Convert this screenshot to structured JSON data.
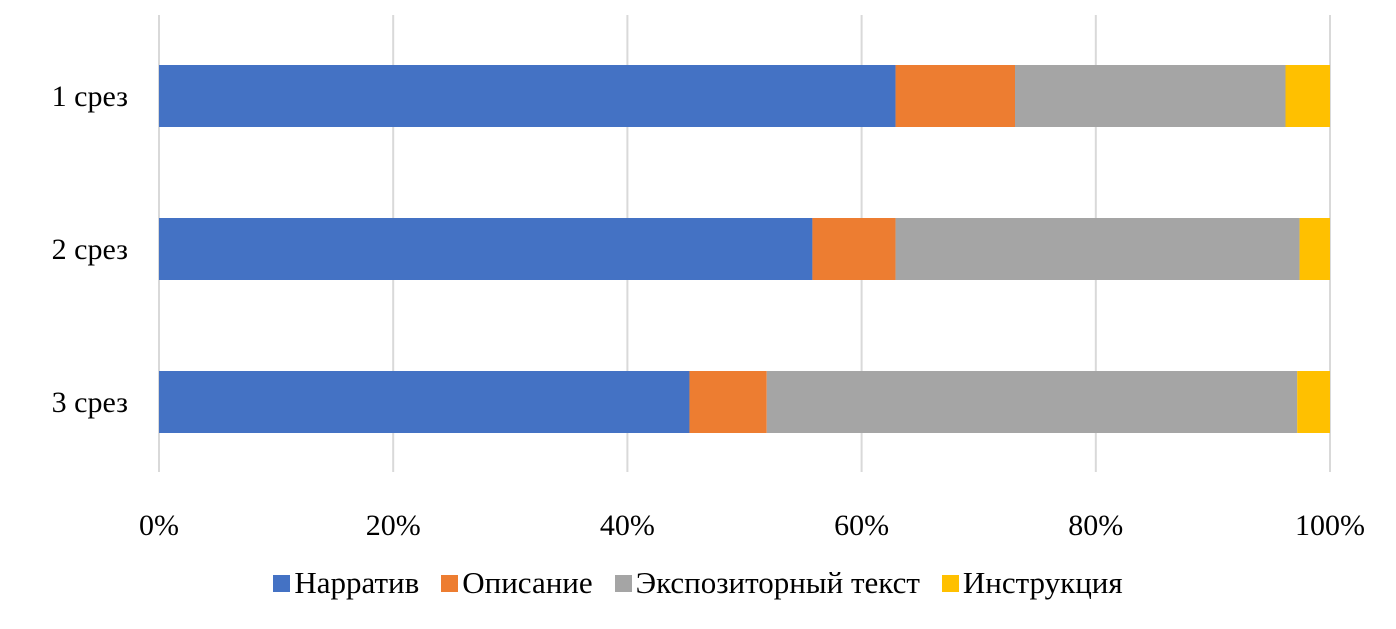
{
  "chart_data": {
    "type": "bar",
    "orientation": "horizontal",
    "stacked": "percent",
    "title": "",
    "xlabel": "",
    "ylabel": "",
    "categories": [
      "1 срез",
      "2 срез",
      "3 срез"
    ],
    "series": [
      {
        "name": "Нарратив",
        "color": "#4472C4",
        "values": [
          62.9,
          55.8,
          45.3
        ]
      },
      {
        "name": "Описание",
        "color": "#ED7D31",
        "values": [
          10.2,
          7.1,
          6.6
        ]
      },
      {
        "name": "Экспозиторный текст",
        "color": "#A5A5A5",
        "values": [
          23.1,
          34.5,
          45.3
        ]
      },
      {
        "name": "Инструкция",
        "color": "#FFC000",
        "values": [
          3.8,
          2.6,
          2.8
        ]
      }
    ],
    "xlim": [
      0,
      100
    ],
    "xticks": [
      "0%",
      "20%",
      "40%",
      "60%",
      "80%",
      "100%"
    ],
    "grid": true,
    "legend_position": "bottom"
  }
}
